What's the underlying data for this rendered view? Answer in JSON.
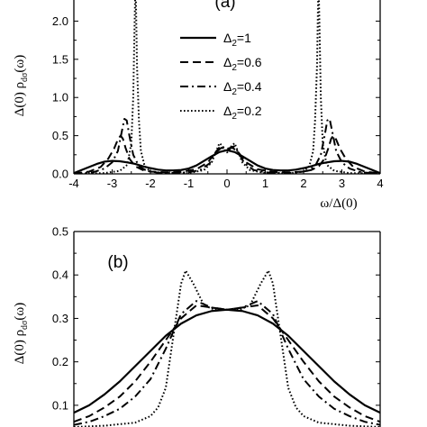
{
  "chart_data": [
    {
      "type": "line",
      "panel_label": "(a)",
      "xlabel": "ω/Δ(0)",
      "ylabel": "Δ(0) ρ",
      "ylabel_sub": "dσ",
      "ylabel_tail": "(ω)",
      "xlim": [
        -4,
        4
      ],
      "ylim": [
        0,
        2.3
      ],
      "xticks": [
        -4,
        -3,
        -2,
        -1,
        0,
        1,
        2,
        3,
        4
      ],
      "yticks": [
        0.0,
        0.5,
        1.0,
        1.5,
        2.0
      ],
      "ytick_labels": [
        "0.0",
        "0.5",
        "1.0",
        "1.5",
        "2.0"
      ],
      "legend_position": "center-right",
      "series": [
        {
          "name": "Δ2=1",
          "label_main": "Δ",
          "label_sub": "2",
          "label_value": "=1",
          "dash": "solid",
          "x": [
            -4,
            -3.8,
            -3.6,
            -3.4,
            -3.2,
            -3.0,
            -2.8,
            -2.6,
            -2.4,
            -2.2,
            -2.0,
            -1.8,
            -1.6,
            -1.4,
            -1.2,
            -1.0,
            -0.8,
            -0.6,
            -0.4,
            -0.2,
            0,
            0.2,
            0.4,
            0.6,
            0.8,
            1.0,
            1.2,
            1.4,
            1.6,
            1.8,
            2.0,
            2.2,
            2.4,
            2.6,
            2.8,
            3.0,
            3.2,
            3.4,
            3.6,
            3.8,
            4
          ],
          "y": [
            0.01,
            0.05,
            0.09,
            0.13,
            0.16,
            0.17,
            0.165,
            0.15,
            0.13,
            0.1,
            0.075,
            0.055,
            0.045,
            0.045,
            0.05,
            0.07,
            0.11,
            0.17,
            0.23,
            0.285,
            0.31,
            0.285,
            0.23,
            0.17,
            0.11,
            0.07,
            0.05,
            0.045,
            0.045,
            0.055,
            0.075,
            0.1,
            0.13,
            0.15,
            0.165,
            0.17,
            0.16,
            0.13,
            0.09,
            0.05,
            0.01
          ]
        },
        {
          "name": "Δ2=0.6",
          "label_main": "Δ",
          "label_sub": "2",
          "label_value": "=0.6",
          "dash": "dash",
          "x": [
            -4,
            -3.6,
            -3.3,
            -3.1,
            -2.95,
            -2.85,
            -2.78,
            -2.72,
            -2.65,
            -2.55,
            -2.4,
            -2.2,
            -2.0,
            -1.6,
            -1.2,
            -0.8,
            -0.5,
            -0.3,
            -0.15,
            0,
            0.15,
            0.3,
            0.5,
            0.8,
            1.2,
            1.6,
            2.0,
            2.2,
            2.4,
            2.55,
            2.65,
            2.72,
            2.78,
            2.85,
            2.95,
            3.1,
            3.3,
            3.6,
            4
          ],
          "y": [
            0.005,
            0.03,
            0.09,
            0.2,
            0.33,
            0.45,
            0.5,
            0.46,
            0.34,
            0.2,
            0.1,
            0.05,
            0.03,
            0.02,
            0.025,
            0.06,
            0.15,
            0.28,
            0.34,
            0.33,
            0.34,
            0.28,
            0.15,
            0.06,
            0.025,
            0.02,
            0.03,
            0.05,
            0.1,
            0.2,
            0.34,
            0.46,
            0.5,
            0.45,
            0.33,
            0.2,
            0.09,
            0.03,
            0.005
          ]
        },
        {
          "name": "Δ2=0.4",
          "label_main": "Δ",
          "label_sub": "2",
          "label_value": "=0.4",
          "dash": "dashdot",
          "x": [
            -4,
            -3.5,
            -3.2,
            -3.0,
            -2.85,
            -2.75,
            -2.68,
            -2.62,
            -2.55,
            -2.45,
            -2.3,
            -2.1,
            -1.8,
            -1.4,
            -1.0,
            -0.7,
            -0.45,
            -0.3,
            -0.18,
            -0.08,
            0,
            0.08,
            0.18,
            0.3,
            0.45,
            0.7,
            1.0,
            1.4,
            1.8,
            2.1,
            2.3,
            2.45,
            2.55,
            2.62,
            2.68,
            2.75,
            2.85,
            3.0,
            3.2,
            3.5,
            4
          ],
          "y": [
            0.003,
            0.02,
            0.07,
            0.15,
            0.3,
            0.55,
            0.72,
            0.7,
            0.5,
            0.25,
            0.1,
            0.04,
            0.015,
            0.012,
            0.02,
            0.05,
            0.14,
            0.28,
            0.36,
            0.34,
            0.32,
            0.34,
            0.36,
            0.28,
            0.14,
            0.05,
            0.02,
            0.012,
            0.015,
            0.04,
            0.1,
            0.25,
            0.5,
            0.7,
            0.72,
            0.55,
            0.3,
            0.15,
            0.07,
            0.02,
            0.003
          ]
        },
        {
          "name": "Δ2=0.2",
          "label_main": "Δ",
          "label_sub": "2",
          "label_value": "=0.2",
          "dash": "dot",
          "x": [
            -4,
            -3.2,
            -2.8,
            -2.6,
            -2.5,
            -2.45,
            -2.42,
            -2.4,
            -2.38,
            -2.35,
            -2.3,
            -2.25,
            -2.15,
            -2.0,
            -1.6,
            -1.0,
            -0.6,
            -0.4,
            -0.28,
            -0.2,
            -0.12,
            -0.05,
            0,
            0.05,
            0.12,
            0.2,
            0.28,
            0.4,
            0.6,
            1.0,
            1.6,
            2.0,
            2.15,
            2.25,
            2.3,
            2.35,
            2.38,
            2.4,
            2.42,
            2.45,
            2.5,
            2.6,
            2.8,
            3.2,
            4
          ],
          "y": [
            0.002,
            0.01,
            0.04,
            0.12,
            0.4,
            1.0,
            1.8,
            2.3,
            2.3,
            1.4,
            0.7,
            0.3,
            0.1,
            0.03,
            0.008,
            0.01,
            0.05,
            0.15,
            0.3,
            0.4,
            0.37,
            0.3,
            0.28,
            0.3,
            0.37,
            0.4,
            0.3,
            0.15,
            0.05,
            0.01,
            0.008,
            0.03,
            0.1,
            0.3,
            0.7,
            1.4,
            2.3,
            2.3,
            1.8,
            1.0,
            0.4,
            0.12,
            0.04,
            0.01,
            0.002
          ]
        }
      ]
    },
    {
      "type": "line",
      "panel_label": "(b)",
      "xlabel": "",
      "ylabel": "Δ(0) ρ",
      "ylabel_sub": "dσ",
      "ylabel_tail": "(ω)",
      "xlim": [
        -1,
        1
      ],
      "ylim": [
        0.05,
        0.5
      ],
      "xticks": [],
      "yticks": [
        0.1,
        0.2,
        0.3,
        0.4,
        0.5
      ],
      "ytick_labels": [
        "0.1",
        "0.2",
        "0.3",
        "0.4",
        "0.5"
      ],
      "series": [
        {
          "name": "Δ2=1",
          "dash": "solid",
          "x": [
            -1,
            -0.9,
            -0.8,
            -0.7,
            -0.6,
            -0.5,
            -0.4,
            -0.3,
            -0.2,
            -0.1,
            0,
            0.1,
            0.2,
            0.3,
            0.4,
            0.5,
            0.6,
            0.7,
            0.8,
            0.9,
            1
          ],
          "y": [
            0.083,
            0.1,
            0.125,
            0.155,
            0.19,
            0.225,
            0.26,
            0.288,
            0.307,
            0.317,
            0.32,
            0.317,
            0.307,
            0.288,
            0.26,
            0.225,
            0.19,
            0.155,
            0.125,
            0.1,
            0.083
          ]
        },
        {
          "name": "Δ2=0.6",
          "dash": "dash",
          "x": [
            -1,
            -0.9,
            -0.8,
            -0.7,
            -0.6,
            -0.5,
            -0.4,
            -0.3,
            -0.2,
            -0.1,
            0,
            0.1,
            0.2,
            0.3,
            0.4,
            0.5,
            0.6,
            0.7,
            0.8,
            0.9,
            1
          ],
          "y": [
            0.062,
            0.075,
            0.095,
            0.12,
            0.155,
            0.2,
            0.25,
            0.3,
            0.33,
            0.325,
            0.32,
            0.325,
            0.33,
            0.3,
            0.25,
            0.2,
            0.155,
            0.12,
            0.095,
            0.075,
            0.062
          ]
        },
        {
          "name": "Δ2=0.4",
          "dash": "dashdot",
          "x": [
            -1,
            -0.9,
            -0.8,
            -0.7,
            -0.6,
            -0.5,
            -0.4,
            -0.3,
            -0.2,
            -0.1,
            0,
            0.1,
            0.2,
            0.3,
            0.4,
            0.5,
            0.6,
            0.7,
            0.8,
            0.9,
            1
          ],
          "y": [
            0.055,
            0.062,
            0.075,
            0.092,
            0.12,
            0.16,
            0.23,
            0.31,
            0.34,
            0.325,
            0.32,
            0.325,
            0.34,
            0.31,
            0.23,
            0.16,
            0.12,
            0.092,
            0.075,
            0.062,
            0.055
          ]
        },
        {
          "name": "Δ2=0.2",
          "dash": "dot",
          "x": [
            -1,
            -0.8,
            -0.6,
            -0.5,
            -0.45,
            -0.4,
            -0.35,
            -0.3,
            -0.27,
            -0.22,
            -0.15,
            -0.08,
            0,
            0.08,
            0.15,
            0.22,
            0.27,
            0.3,
            0.35,
            0.4,
            0.45,
            0.5,
            0.6,
            0.8,
            1
          ],
          "y": [
            0.05,
            0.053,
            0.06,
            0.075,
            0.095,
            0.14,
            0.26,
            0.38,
            0.41,
            0.38,
            0.33,
            0.32,
            0.32,
            0.32,
            0.33,
            0.38,
            0.41,
            0.38,
            0.26,
            0.14,
            0.095,
            0.075,
            0.06,
            0.053,
            0.05
          ]
        }
      ]
    }
  ]
}
